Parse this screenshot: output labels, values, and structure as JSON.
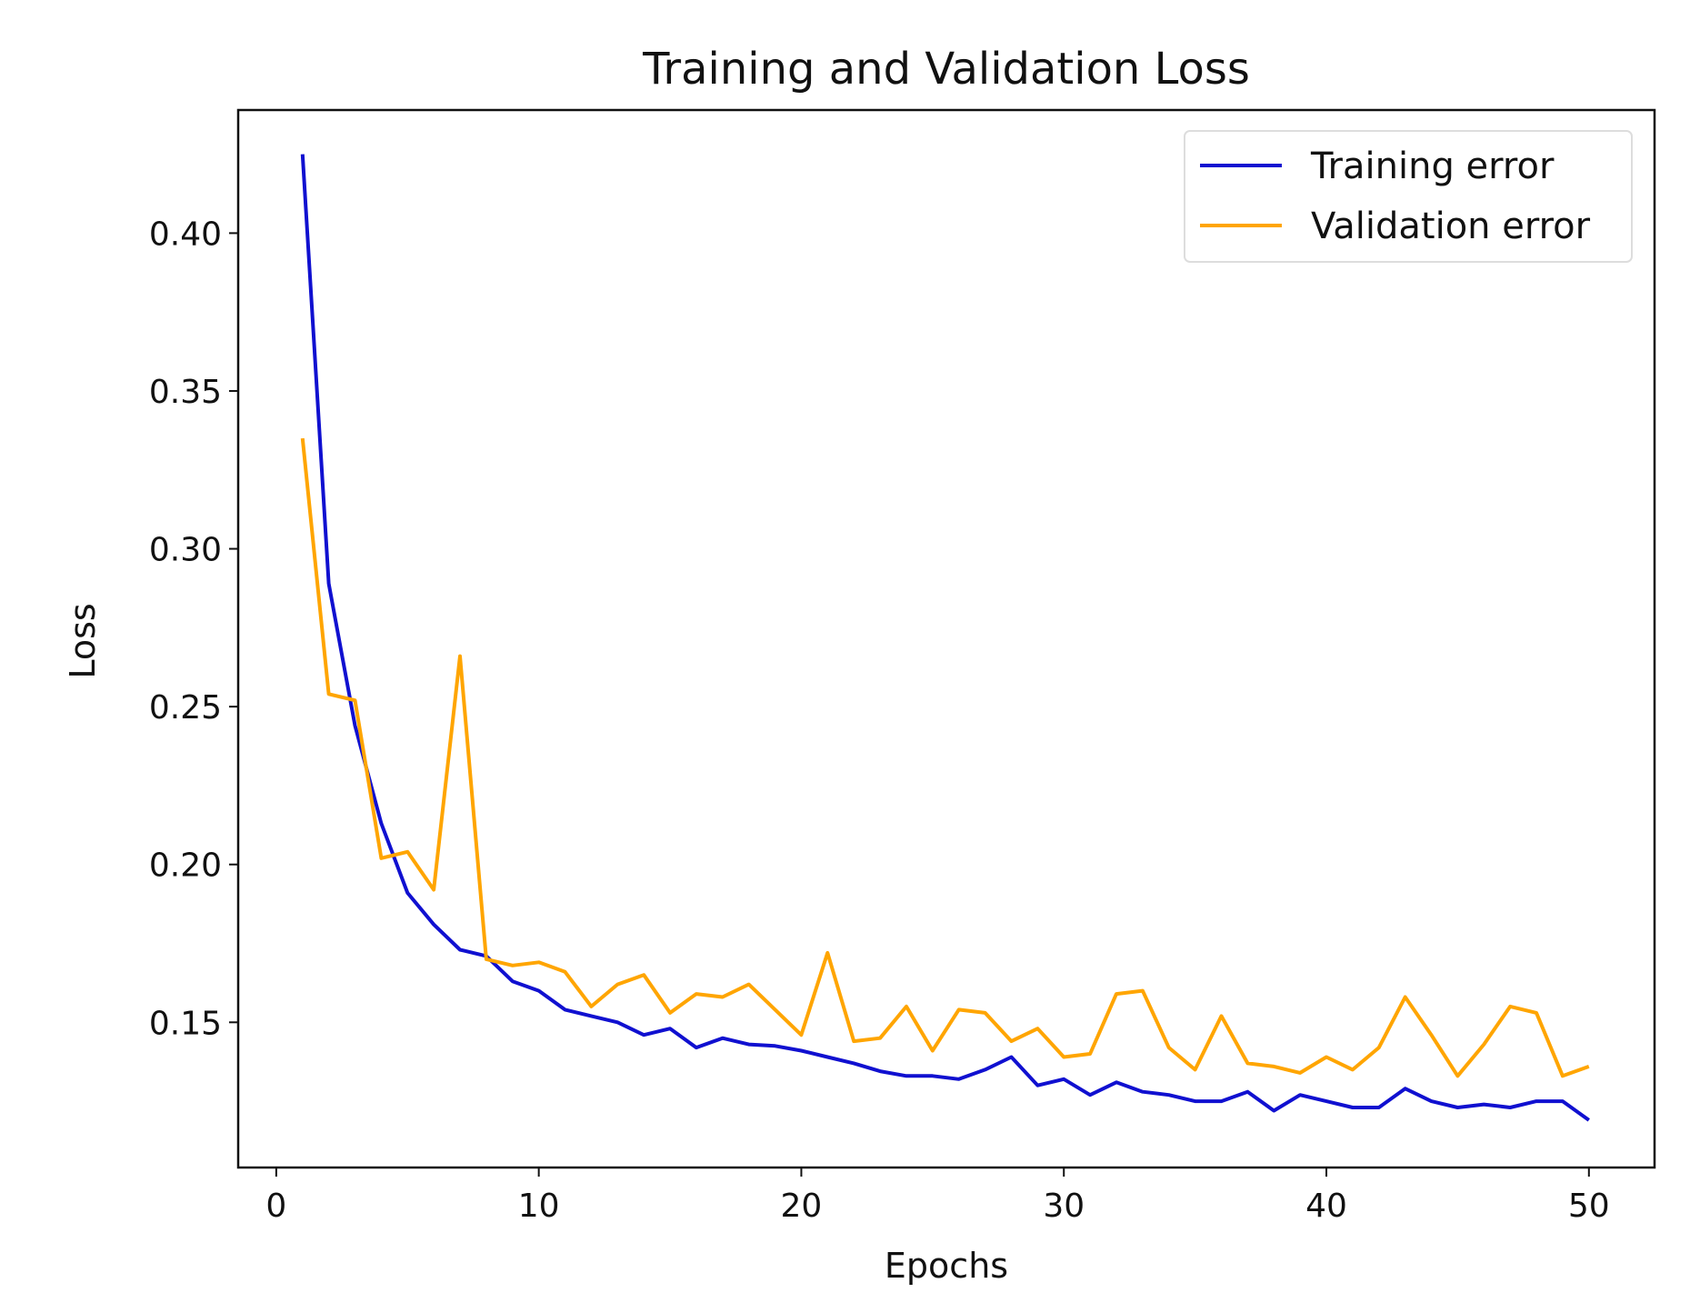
{
  "chart_data": {
    "type": "line",
    "title": "Training and Validation Loss",
    "xlabel": "Epochs",
    "ylabel": "Loss",
    "xlim": [
      -1.45,
      52.5
    ],
    "ylim": [
      0.104,
      0.439
    ],
    "xticks": [
      "0",
      "10",
      "20",
      "30",
      "40",
      "50"
    ],
    "yticks": [
      "0.15",
      "0.20",
      "0.25",
      "0.30",
      "0.35",
      "0.40"
    ],
    "grid": false,
    "legend_position": "top-right",
    "x": [
      1,
      2,
      3,
      4,
      5,
      6,
      7,
      8,
      9,
      10,
      11,
      12,
      13,
      14,
      15,
      16,
      17,
      18,
      19,
      20,
      21,
      22,
      23,
      24,
      25,
      26,
      27,
      28,
      29,
      30,
      31,
      32,
      33,
      34,
      35,
      36,
      37,
      38,
      39,
      40,
      41,
      42,
      43,
      44,
      45,
      46,
      47,
      48,
      49,
      50
    ],
    "series": [
      {
        "name": "Training error",
        "color": "#1010d0",
        "values": [
          0.425,
          0.289,
          0.244,
          0.213,
          0.191,
          0.181,
          0.173,
          0.171,
          0.163,
          0.16,
          0.154,
          0.152,
          0.15,
          0.146,
          0.148,
          0.142,
          0.145,
          0.143,
          0.1425,
          0.141,
          0.139,
          0.137,
          0.1345,
          0.133,
          0.133,
          0.132,
          0.135,
          0.139,
          0.13,
          0.132,
          0.127,
          0.131,
          0.128,
          0.127,
          0.125,
          0.125,
          0.128,
          0.122,
          0.127,
          0.125,
          0.123,
          0.123,
          0.129,
          0.125,
          0.123,
          0.124,
          0.123,
          0.125,
          0.125,
          0.119
        ]
      },
      {
        "name": "Validation error",
        "color": "#ffa500",
        "values": [
          0.335,
          0.254,
          0.252,
          0.202,
          0.204,
          0.192,
          0.266,
          0.17,
          0.168,
          0.169,
          0.166,
          0.155,
          0.162,
          0.165,
          0.153,
          0.159,
          0.158,
          0.162,
          0.154,
          0.146,
          0.172,
          0.144,
          0.145,
          0.155,
          0.141,
          0.154,
          0.153,
          0.144,
          0.148,
          0.139,
          0.14,
          0.159,
          0.16,
          0.142,
          0.135,
          0.152,
          0.137,
          0.136,
          0.134,
          0.139,
          0.135,
          0.142,
          0.158,
          0.146,
          0.133,
          0.143,
          0.155,
          0.153,
          0.133,
          0.136
        ]
      }
    ]
  }
}
